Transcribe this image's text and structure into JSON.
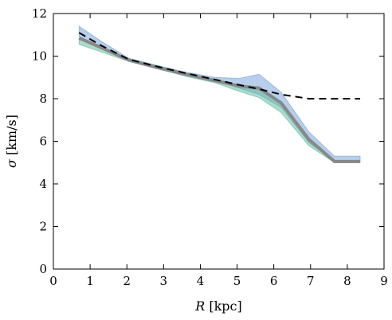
{
  "chart_data": {
    "type": "line",
    "title": "",
    "xlabel_symbol": "R",
    "xlabel_unit": " [kpc]",
    "ylabel_symbol": "σ",
    "ylabel_unit": " [km/s]",
    "xlim": [
      0,
      9
    ],
    "ylim": [
      0,
      12
    ],
    "xticks": [
      0,
      1,
      2,
      3,
      4,
      5,
      6,
      7,
      8,
      9
    ],
    "yticks": [
      0,
      2,
      4,
      6,
      8,
      10,
      12
    ],
    "grid": false,
    "legend": "none",
    "bands": [
      {
        "color": "#6f9fd8",
        "x": [
          0.7,
          1.3,
          2.05,
          2.85,
          3.6,
          4.4,
          5.05,
          5.6,
          6.2,
          6.95,
          7.65,
          8.35
        ],
        "upper": [
          11.4,
          10.7,
          9.9,
          9.55,
          9.25,
          9.0,
          8.95,
          9.15,
          8.3,
          6.45,
          5.3,
          5.3
        ],
        "lower": [
          10.9,
          10.45,
          9.8,
          9.4,
          9.1,
          8.85,
          8.5,
          8.2,
          7.6,
          5.95,
          5.05,
          5.05
        ]
      },
      {
        "color": "#5cba9a",
        "x": [
          0.7,
          1.3,
          2.05,
          2.85,
          3.6,
          4.4,
          5.05,
          5.6,
          6.2,
          6.95,
          7.65,
          8.35
        ],
        "upper": [
          10.8,
          10.35,
          9.85,
          9.55,
          9.2,
          8.9,
          8.6,
          8.4,
          7.8,
          6.1,
          5.05,
          5.05
        ],
        "lower": [
          10.55,
          10.2,
          9.75,
          9.4,
          9.05,
          8.75,
          8.35,
          8.05,
          7.35,
          5.8,
          5.0,
          5.0
        ]
      }
    ],
    "series": [
      {
        "color": "#888888",
        "style": "solid",
        "x": [
          0.7,
          1.3,
          2.05,
          2.85,
          3.6,
          4.4,
          5.05,
          5.6,
          6.2,
          6.95,
          7.65,
          8.35
        ],
        "y": [
          10.85,
          10.4,
          9.82,
          9.45,
          9.15,
          8.85,
          8.6,
          8.5,
          7.8,
          6.1,
          5.05,
          5.05
        ]
      },
      {
        "color": "#000000",
        "style": "dashed",
        "x": [
          0.7,
          1.3,
          2.05,
          2.85,
          3.6,
          4.4,
          5.05,
          5.6,
          6.2,
          6.95,
          7.65,
          8.35
        ],
        "y": [
          11.1,
          10.5,
          9.85,
          9.5,
          9.2,
          8.9,
          8.65,
          8.45,
          8.2,
          8.0,
          8.0,
          8.0
        ]
      }
    ]
  }
}
